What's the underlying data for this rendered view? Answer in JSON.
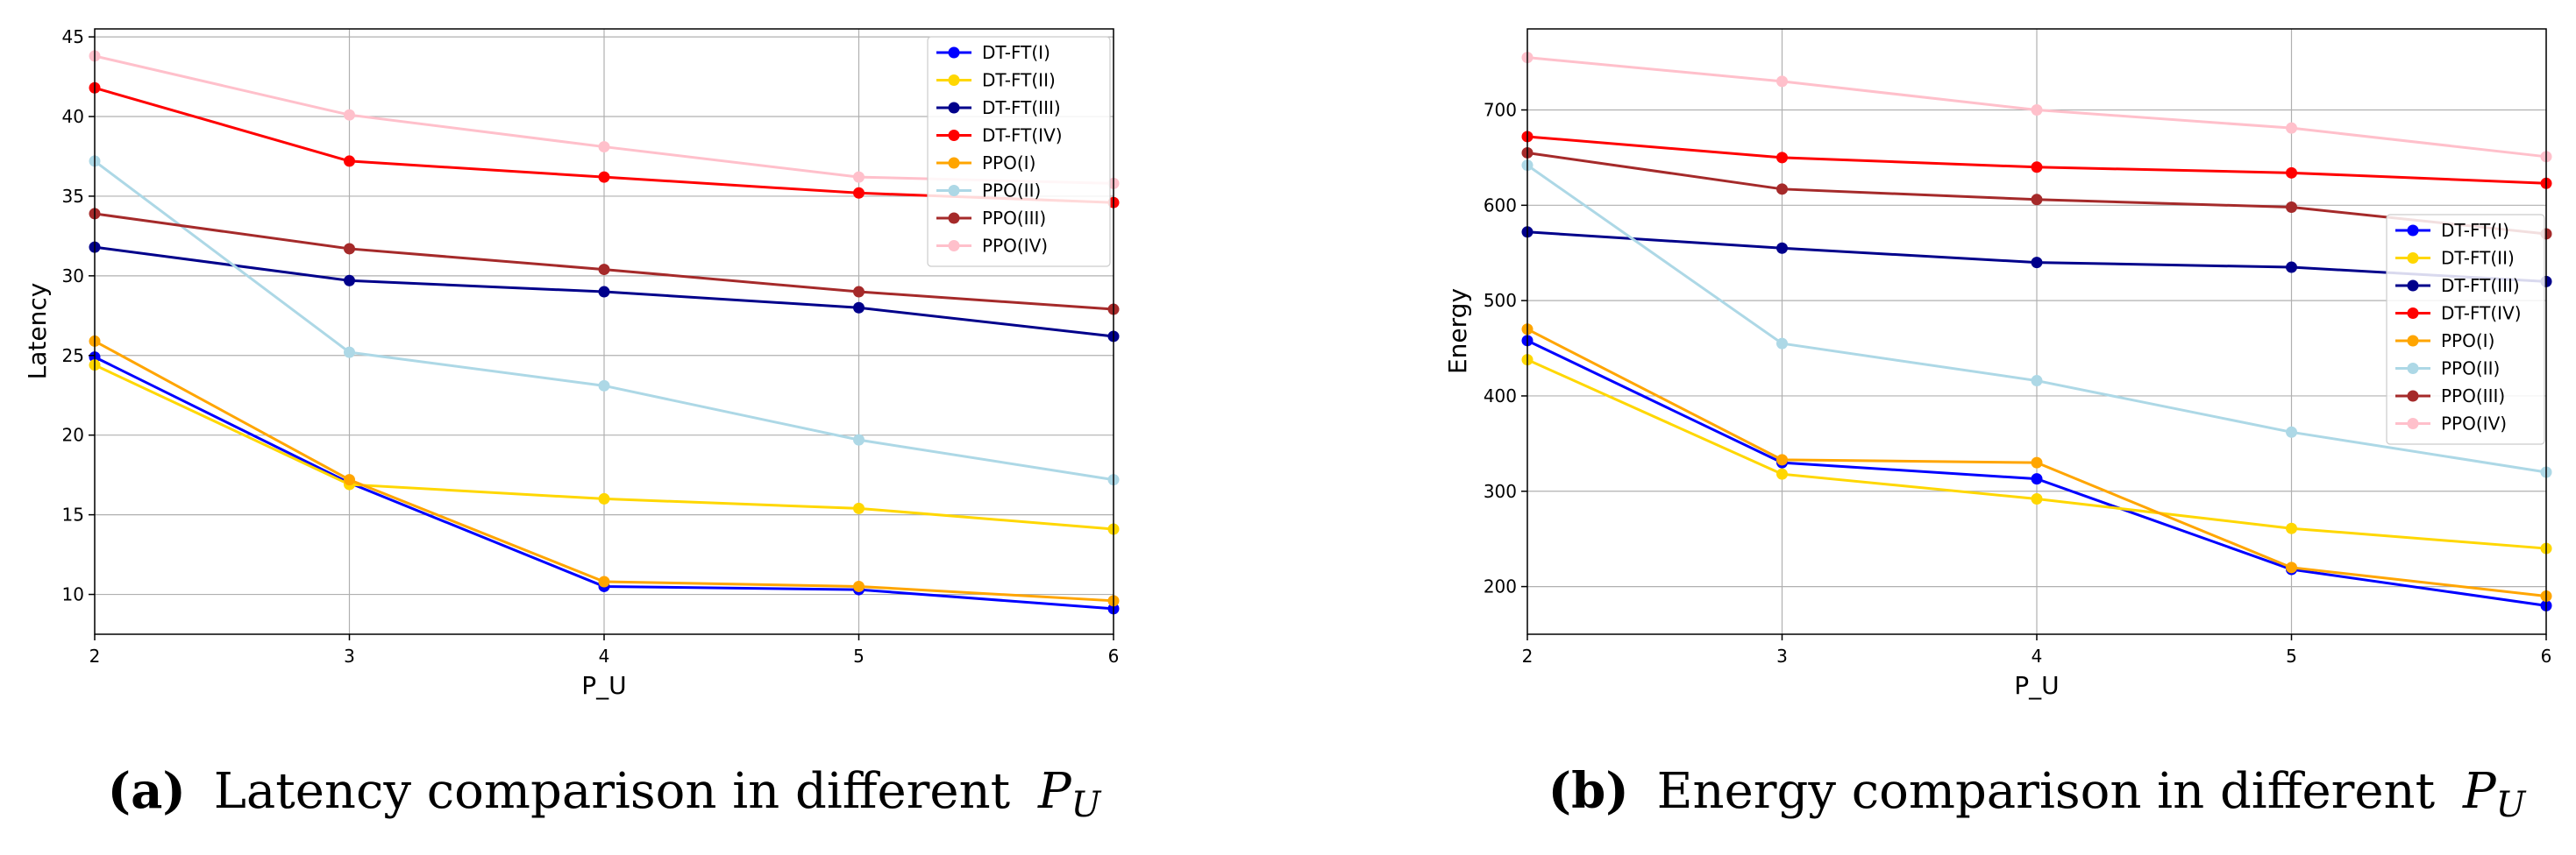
{
  "colors": {
    "DT-FT(I)": "#0000ff",
    "DT-FT(II)": "#ffd700",
    "DT-FT(III)": "#00008b",
    "DT-FT(IV)": "#ff0000",
    "PPO(I)": "#ffa500",
    "PPO(II)": "#add8e6",
    "PPO(III)": "#a52a2a",
    "PPO(IV)": "#ffc0cb",
    "grid": "#b0b0b0"
  },
  "chart_data": [
    {
      "type": "line",
      "caption_tag": "(a)",
      "caption_text": "Latency comparison in different",
      "caption_math": "P",
      "caption_sub": "U",
      "xlabel": "P_U",
      "ylabel": "Latency",
      "xlim": [
        2,
        6
      ],
      "ylim": [
        7.5,
        45.5
      ],
      "xticks": [
        2,
        3,
        4,
        5,
        6
      ],
      "yticks": [
        10,
        15,
        20,
        25,
        30,
        35,
        40,
        45
      ],
      "grid": true,
      "legend": "top-right",
      "x": [
        2,
        3,
        4,
        5,
        6
      ],
      "series": [
        {
          "name": "DT-FT(I)",
          "values": [
            24.9,
            17.0,
            10.5,
            10.3,
            9.1
          ]
        },
        {
          "name": "DT-FT(II)",
          "values": [
            24.4,
            16.9,
            16.0,
            15.4,
            14.1
          ]
        },
        {
          "name": "DT-FT(III)",
          "values": [
            31.8,
            29.7,
            29.0,
            28.0,
            26.2
          ]
        },
        {
          "name": "DT-FT(IV)",
          "values": [
            41.8,
            37.2,
            36.2,
            35.2,
            34.6
          ]
        },
        {
          "name": "PPO(I)",
          "values": [
            25.9,
            17.2,
            10.8,
            10.5,
            9.6
          ]
        },
        {
          "name": "PPO(II)",
          "values": [
            37.2,
            25.2,
            23.1,
            19.7,
            17.2
          ]
        },
        {
          "name": "PPO(III)",
          "values": [
            33.9,
            31.7,
            30.4,
            29.0,
            27.9
          ]
        },
        {
          "name": "PPO(IV)",
          "values": [
            43.8,
            40.1,
            38.1,
            36.2,
            35.8
          ]
        }
      ]
    },
    {
      "type": "line",
      "caption_tag": "(b)",
      "caption_text": "Energy comparison in different",
      "caption_math": "P",
      "caption_sub": "U",
      "xlabel": "P_U",
      "ylabel": "Energy",
      "xlim": [
        2,
        6
      ],
      "ylim": [
        150,
        785
      ],
      "xticks": [
        2,
        3,
        4,
        5,
        6
      ],
      "yticks": [
        200,
        300,
        400,
        500,
        600,
        700
      ],
      "grid": true,
      "legend": "center-right",
      "x": [
        2,
        3,
        4,
        5,
        6
      ],
      "series": [
        {
          "name": "DT-FT(I)",
          "values": [
            458,
            330,
            313,
            218,
            180
          ]
        },
        {
          "name": "DT-FT(II)",
          "values": [
            438,
            318,
            292,
            261,
            240
          ]
        },
        {
          "name": "DT-FT(III)",
          "values": [
            572,
            555,
            540,
            535,
            520
          ]
        },
        {
          "name": "DT-FT(IV)",
          "values": [
            672,
            650,
            640,
            634,
            623
          ]
        },
        {
          "name": "PPO(I)",
          "values": [
            470,
            333,
            330,
            220,
            190
          ]
        },
        {
          "name": "PPO(II)",
          "values": [
            642,
            455,
            416,
            362,
            320
          ]
        },
        {
          "name": "PPO(III)",
          "values": [
            655,
            617,
            606,
            598,
            570
          ]
        },
        {
          "name": "PPO(IV)",
          "values": [
            755,
            730,
            700,
            681,
            651
          ]
        }
      ]
    }
  ]
}
